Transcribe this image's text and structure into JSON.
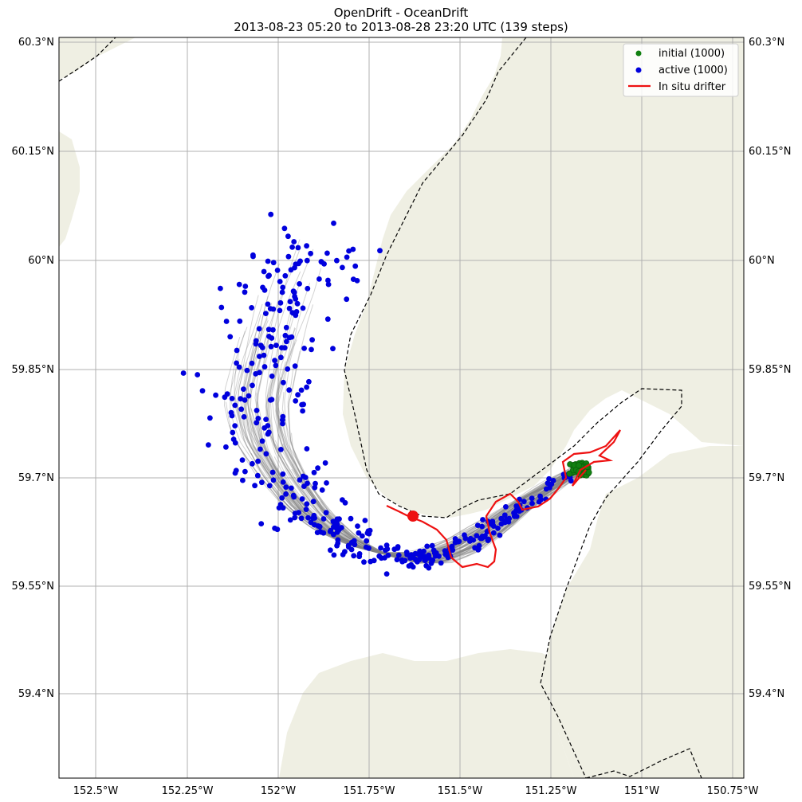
{
  "title_line1": "OpenDrift - OceanDrift",
  "title_line2": "2013-08-23 05:20 to 2013-08-28 23:20 UTC (139 steps)",
  "legend": {
    "initial": "initial (1000)",
    "active": "active (1000)",
    "drifter": "In situ drifter"
  },
  "colors": {
    "land": "#efefe3",
    "trajectory": "#808080",
    "initial": "#118011",
    "active": "#0000dd",
    "drifter": "#ee1111",
    "grid": "#b0b0b0"
  },
  "axes": {
    "lon_ticks": [
      "152.5°W",
      "152.25°W",
      "152°W",
      "151.75°W",
      "151.5°W",
      "151.25°W",
      "151°W",
      "150.75°W"
    ],
    "lat_ticks_left": [
      "60.3°N",
      "60.15°N",
      "60°N",
      "59.85°N",
      "59.7°N",
      "59.55°N",
      "59.4°N"
    ],
    "lat_ticks_right": [
      "60.3°N",
      "60.15°N",
      "60°N",
      "59.85°N",
      "59.7°N",
      "59.55°N",
      "59.4°N"
    ]
  }
}
